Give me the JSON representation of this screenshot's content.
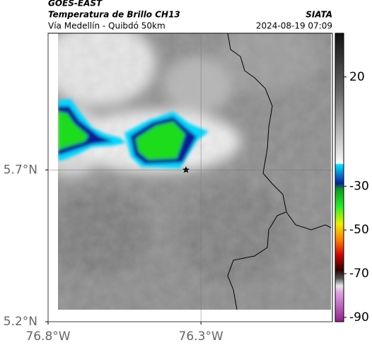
{
  "header": {
    "satellite": "GOES-EAST",
    "product": "Temperatura de Brillo CH13",
    "region": "Vía Medellín - Quibdó 50km",
    "source": "SIATA",
    "timestamp": "2024-08-19 07:09"
  },
  "map": {
    "lonlim": [
      -76.8,
      -75.87
    ],
    "latlim": [
      5.2,
      6.15
    ],
    "lon_ticks": [
      {
        "value": -76.8,
        "label": "76.8°W"
      },
      {
        "value": -76.3,
        "label": "76.3°W"
      }
    ],
    "lat_ticks": [
      {
        "value": 5.7,
        "label": "5.7°N"
      },
      {
        "value": 5.2,
        "label": "5.2°N"
      }
    ],
    "grid": true
  },
  "colorbar": {
    "clim": [
      40,
      -92
    ],
    "ticks": [
      20,
      -30,
      -50,
      -70,
      -90
    ]
  }
}
